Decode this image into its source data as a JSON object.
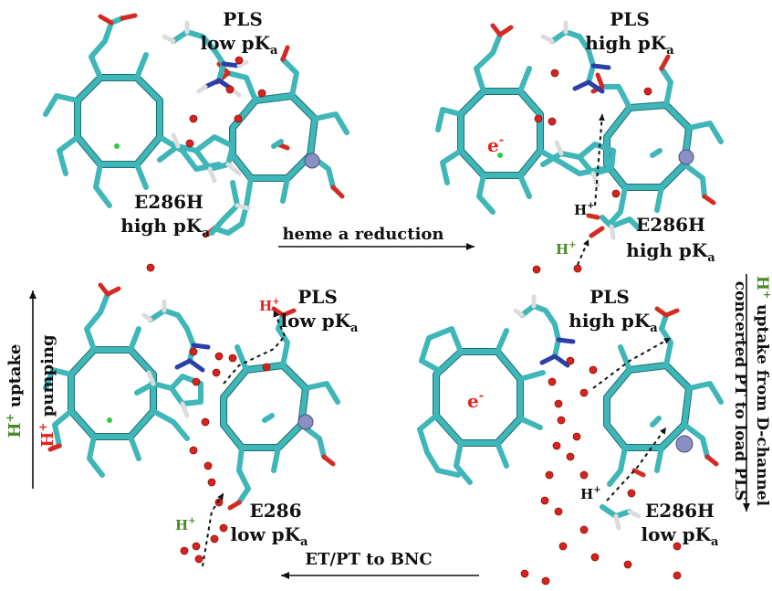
{
  "panels": {
    "top_left": {
      "pls": "PLS",
      "pls_pka": "low pK",
      "pls_sub": "a",
      "res": "E286H",
      "res_pka": "high pK",
      "res_sub": "a"
    },
    "top_right": {
      "pls": "PLS",
      "pls_pka": "high pK",
      "pls_sub": "a",
      "electron": "e",
      "electron_sup": "-",
      "proton1": "H",
      "proton1_sup": "+",
      "proton2": "H",
      "proton2_sup": "+",
      "res": "E286H",
      "res_pka": "high pK",
      "res_sub": "a"
    },
    "bottom_left": {
      "proton_out": "H",
      "proton_out_sup": "+",
      "pls": "PLS",
      "pls_pka": "low pK",
      "pls_sub": "a",
      "proton_in": "H",
      "proton_in_sup": "+",
      "res": "E286",
      "res_pka": "low pK",
      "res_sub": "a"
    },
    "bottom_right": {
      "pls": "PLS",
      "pls_pka": "high pK",
      "pls_sub": "a",
      "electron": "e",
      "electron_sup": "-",
      "proton": "H",
      "proton_sup": "+",
      "res": "E286H",
      "res_pka": "low pK",
      "res_sub": "a"
    }
  },
  "arrows": {
    "top": "heme a reduction",
    "bottom": "ET/PT to BNC",
    "left_green_h": "H",
    "left_green_sup": "+",
    "left_green_text": " uptake",
    "left_red_h": "H",
    "left_red_sup": "+",
    "left_red_text": " pumping",
    "right_green_h": "H",
    "right_green_sup": "+",
    "right_green_text": " uptake from D-channel",
    "right_black_text": "concerted PT to load PLS"
  },
  "colors": {
    "carbon": "#3fb6b8",
    "oxygen": "#d42a24",
    "nitrogen": "#2a3fa8",
    "hydrogen": "#dcdcdc",
    "water": "#d7231d",
    "metal": "#8a8fc4",
    "label_red": "#e3241f",
    "label_green": "#4a8a2a"
  }
}
